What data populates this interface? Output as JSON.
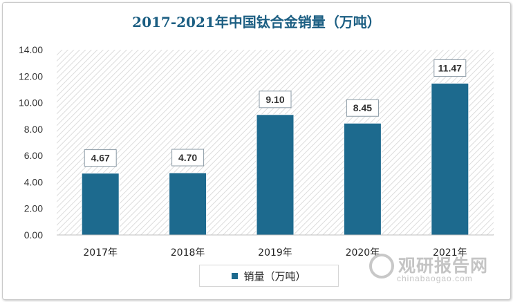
{
  "chart_data": {
    "type": "bar",
    "title": "2017-2021年中国钛合金销量（万吨）",
    "categories": [
      "2017年",
      "2018年",
      "2019年",
      "2020年",
      "2021年"
    ],
    "series": [
      {
        "name": "销量（万吨）",
        "values": [
          4.67,
          4.7,
          9.1,
          8.45,
          11.47
        ]
      }
    ],
    "value_labels": [
      "4.67",
      "4.70",
      "9.10",
      "8.45",
      "11.47"
    ],
    "y_ticks": [
      "0.00",
      "2.00",
      "4.00",
      "6.00",
      "8.00",
      "10.00",
      "12.00",
      "14.00"
    ],
    "ylim": [
      0,
      14
    ],
    "xlabel": "",
    "ylabel": "",
    "legend_position": "bottom-center",
    "bar_color": "#1d6a8e",
    "title_color": "#1b5e82"
  },
  "watermark": {
    "brand_cn": "观研报告网",
    "brand_en": "chinabaogao.com",
    "logo_icon": "chinabaogao-logo-icon"
  }
}
